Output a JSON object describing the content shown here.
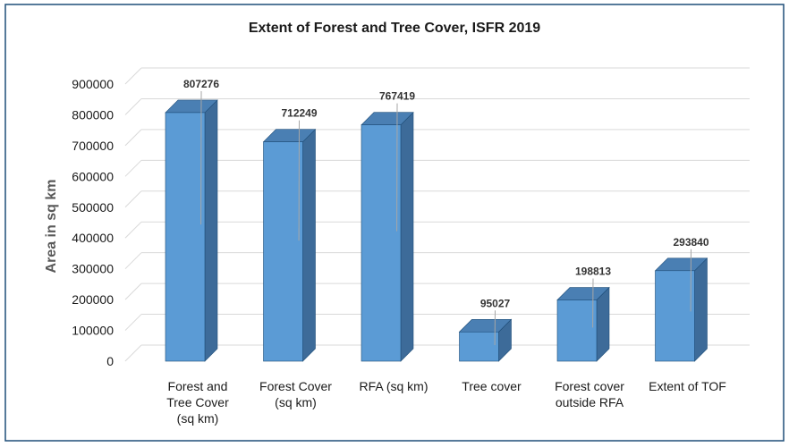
{
  "chart_data": {
    "type": "bar",
    "title": "Extent of Forest and Tree Cover, ISFR 2019",
    "xlabel": "",
    "ylabel": "Area in sq km",
    "categories": [
      [
        "Forest and",
        "Tree Cover",
        "(sq km)"
      ],
      [
        "Forest Cover",
        "(sq km)"
      ],
      [
        "RFA (sq km)"
      ],
      [
        "Tree cover"
      ],
      [
        "Forest cover",
        "outside RFA"
      ],
      [
        "Extent of TOF"
      ]
    ],
    "values": [
      807276,
      712249,
      767419,
      95027,
      198813,
      293840
    ],
    "ylim": [
      0,
      900000
    ],
    "yticks": [
      0,
      100000,
      200000,
      300000,
      400000,
      500000,
      600000,
      700000,
      800000,
      900000
    ],
    "grid": true,
    "legend": "none",
    "colors": {
      "front": "#5b9bd5",
      "side": "#3d6b99",
      "top": "#4a7fb3",
      "border": "#1f4e79",
      "grid": "#d9d9d9"
    }
  }
}
